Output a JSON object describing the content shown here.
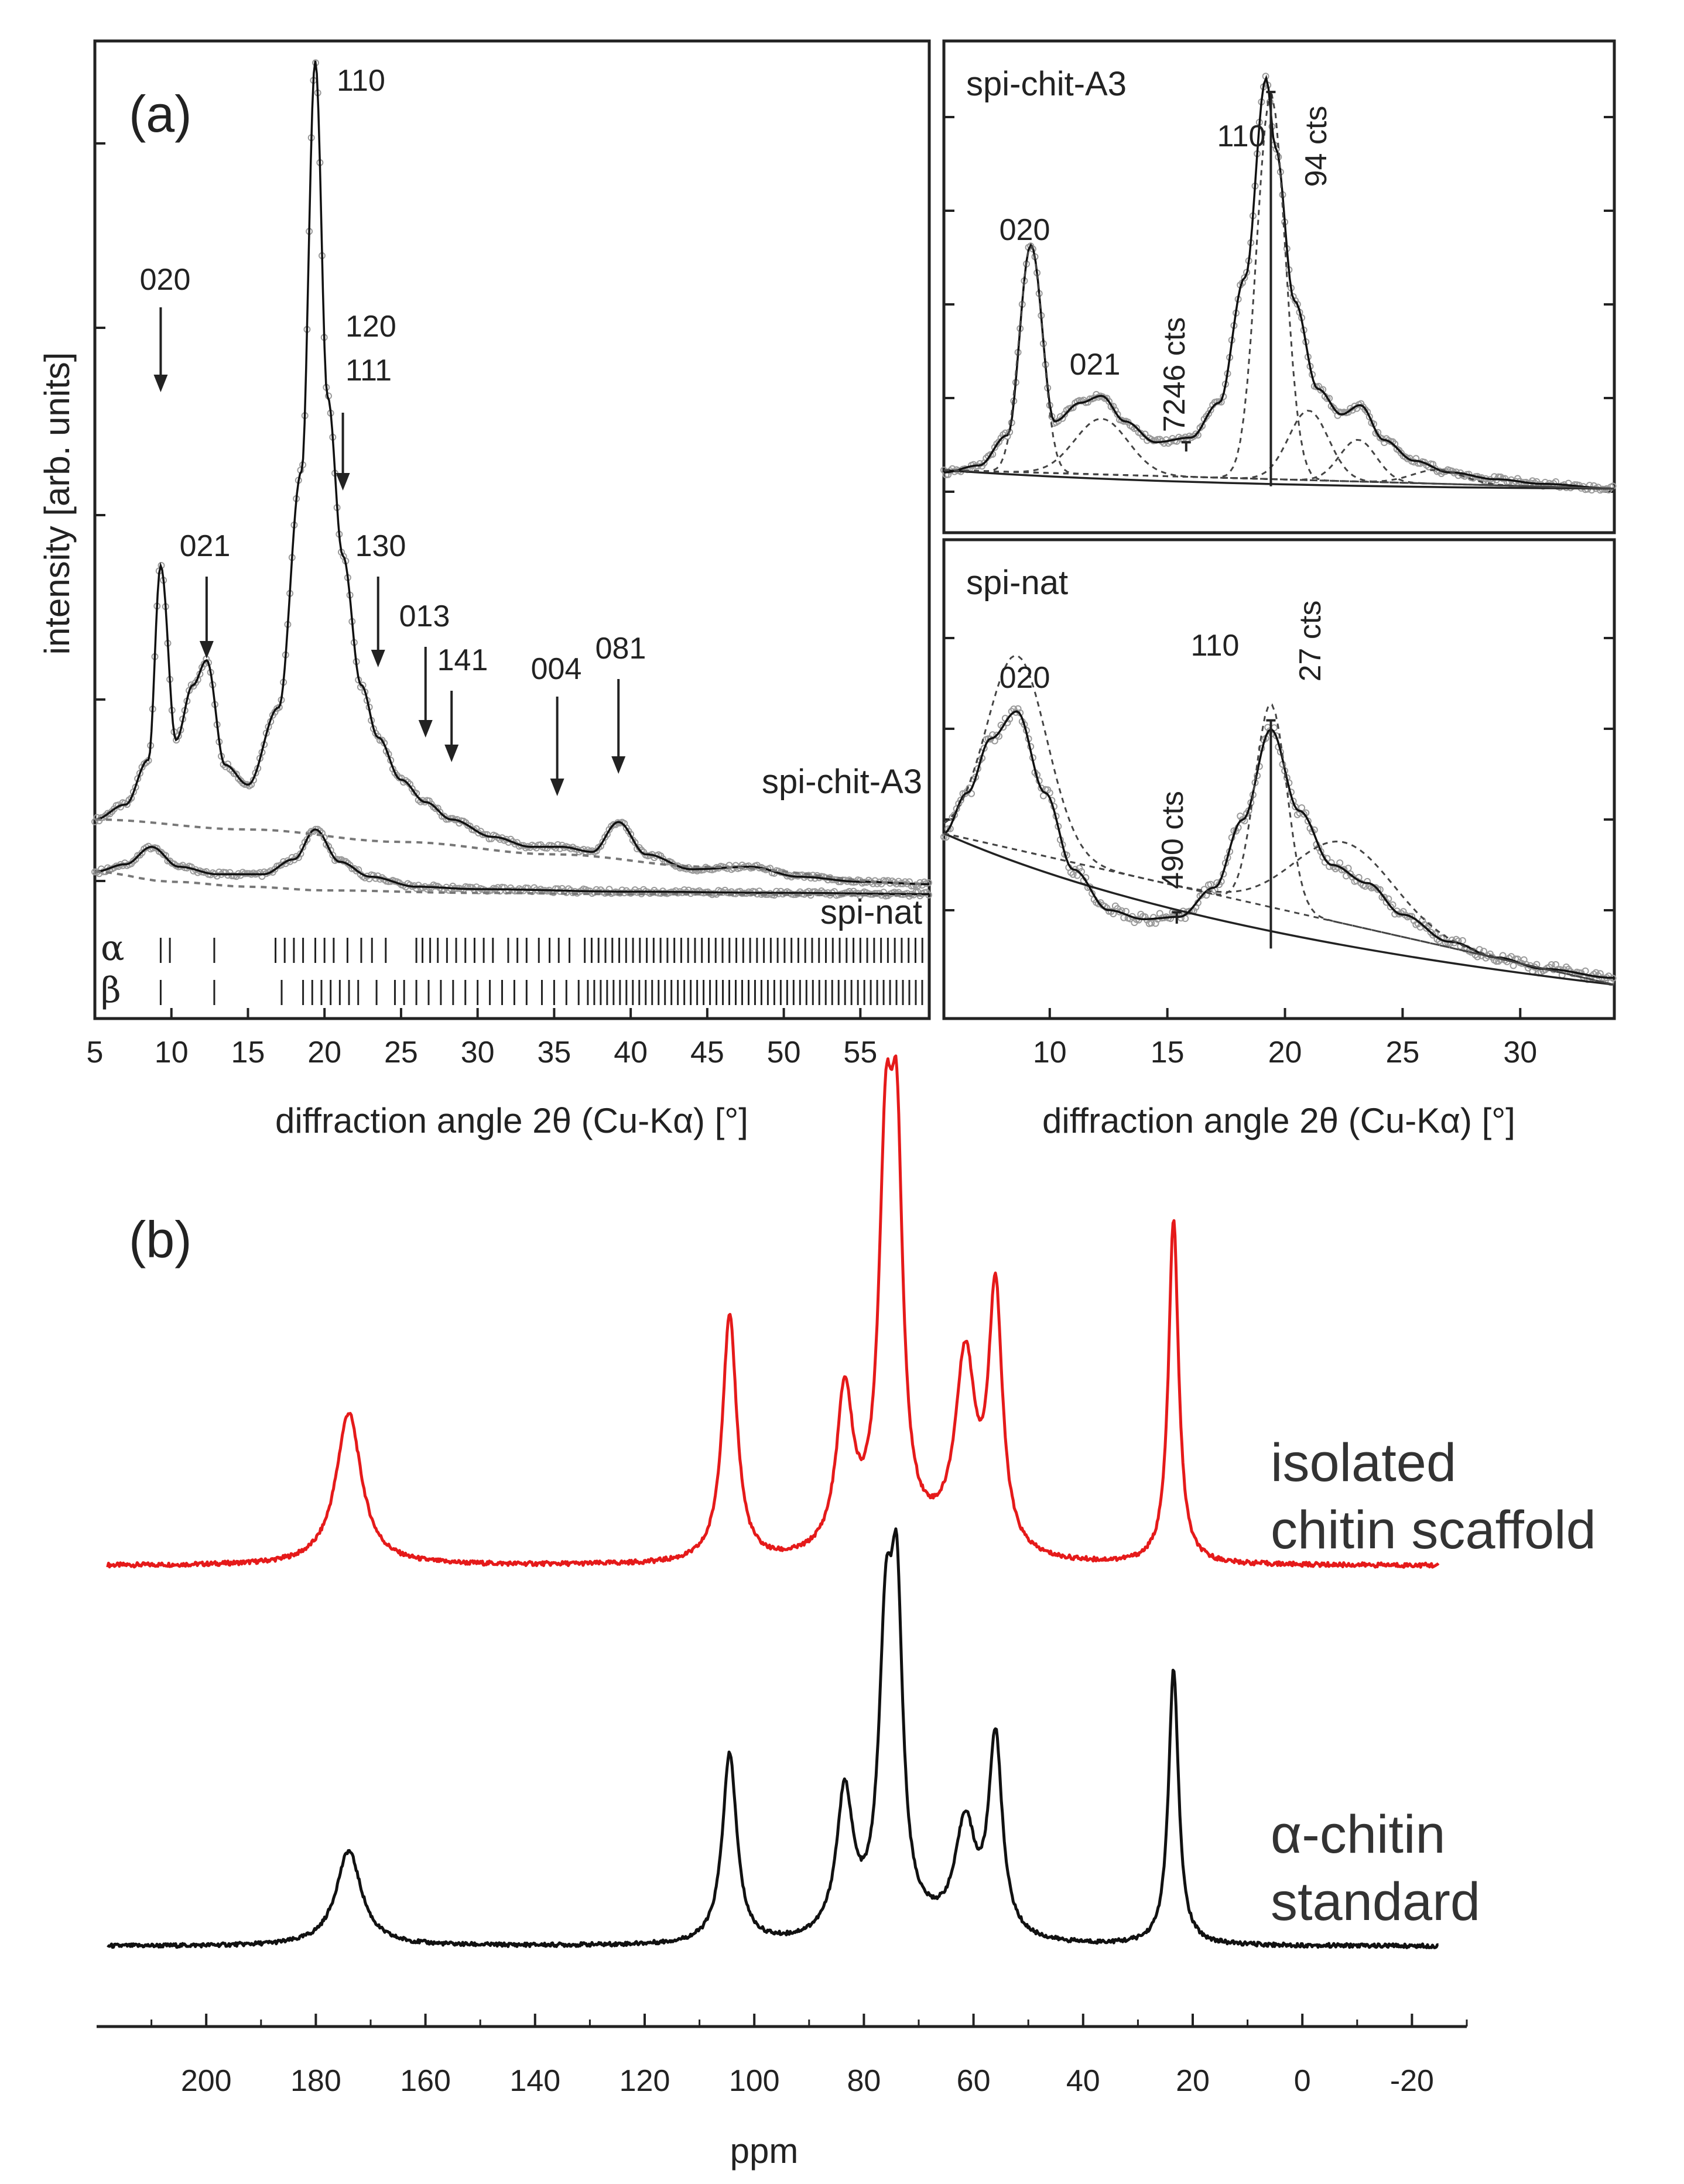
{
  "figure": {
    "panel_a_label": "(a)",
    "panel_b_label": "(b)"
  },
  "colors": {
    "ink": "#222222",
    "markers": "#9a9a9a",
    "red": "#e51a1a",
    "black": "#111111"
  },
  "chart_data": [
    {
      "id": "xrd-main",
      "type": "line",
      "title": "",
      "xlabel": "diffraction angle 2θ (Cu-Kα) [°]",
      "ylabel": "intensity [arb. units]",
      "xlim": [
        5,
        59.5
      ],
      "xticks": [
        5,
        10,
        15,
        20,
        25,
        30,
        35,
        40,
        45,
        50,
        55
      ],
      "series": [
        {
          "name": "spi-chit-A3",
          "x": [
            5,
            7,
            8.5,
            9.3,
            10.3,
            11.4,
            12.3,
            13.5,
            15,
            17,
            18.5,
            19.4,
            20.2,
            21.2,
            22.4,
            23.5,
            25,
            26.6,
            28.3,
            31,
            33.5,
            35.5,
            37.5,
            39.2,
            41,
            44,
            47.8,
            51,
            55,
            59.5
          ],
          "y": [
            8.0,
            8.6,
            10.4,
            18.2,
            11.2,
            13.4,
            14.4,
            10.2,
            9.4,
            12.5,
            22.0,
            38.5,
            25.0,
            18.6,
            13.4,
            11.3,
            9.6,
            8.7,
            8.0,
            7.3,
            6.9,
            6.9,
            6.7,
            7.9,
            6.6,
            6.0,
            6.1,
            5.7,
            5.5,
            5.4
          ]
        },
        {
          "name": "spi-nat",
          "x": [
            5,
            7,
            8.7,
            10.5,
            13,
            16,
            18,
            19.4,
            21,
            23,
            26,
            30,
            40,
            50,
            59.5
          ],
          "y": [
            5.9,
            6.2,
            6.9,
            6.1,
            5.8,
            5.8,
            6.4,
            7.6,
            6.3,
            5.7,
            5.3,
            5.2,
            5.1,
            5.05,
            5.0
          ]
        },
        {
          "name": "background spi-chit-A3",
          "x": [
            5,
            15,
            25,
            35,
            45,
            59.5
          ],
          "y": [
            8.0,
            7.6,
            7.1,
            6.6,
            6.1,
            5.4
          ]
        },
        {
          "name": "background spi-nat",
          "x": [
            5,
            10,
            15,
            20,
            30,
            40,
            59.5
          ],
          "y": [
            5.9,
            5.5,
            5.3,
            5.15,
            5.05,
            5.0,
            4.95
          ]
        }
      ],
      "sample_labels": [
        "spi-chit-A3",
        "spi-nat"
      ],
      "peak_labels": [
        {
          "text": "020",
          "x": 9.3
        },
        {
          "text": "021",
          "x": 12.3
        },
        {
          "text": "110",
          "x": 19.4
        },
        {
          "text": "120",
          "x": 21.2
        },
        {
          "text": "111",
          "x": 21.2
        },
        {
          "text": "130",
          "x": 23.5
        },
        {
          "text": "013",
          "x": 26.6
        },
        {
          "text": "141",
          "x": 28.3
        },
        {
          "text": "004",
          "x": 35.2
        },
        {
          "text": "081",
          "x": 39.2
        }
      ],
      "reference_labels": {
        "alpha": "α",
        "beta": "β"
      },
      "alpha_ticks": [
        9.3,
        9.9,
        12.8,
        16.8,
        17.4,
        18.0,
        18.6,
        19.4,
        20.0,
        20.6,
        21.5,
        22.4,
        23.1,
        24.0,
        26.0,
        26.4,
        26.9,
        27.4,
        28.0,
        28.6,
        29.2,
        29.8,
        30.4,
        31.0,
        32.0,
        32.6,
        33.2,
        34.0,
        34.7,
        35.3,
        36.0
      ],
      "beta_ticks": [
        9.3,
        12.8,
        17.2,
        18.6,
        19.2,
        19.8,
        20.4,
        21.0,
        21.6,
        22.2,
        23.4,
        24.6,
        25.2,
        26.0,
        26.8,
        27.6,
        28.4,
        29.2,
        30.0,
        30.8,
        31.6,
        32.4,
        33.2,
        34.2,
        35.0,
        35.8,
        36.6
      ]
    },
    {
      "id": "xrd-fit-chit",
      "type": "line",
      "title": "spi-chit-A3",
      "xlim": [
        5.5,
        34
      ],
      "ylim": [
        0,
        10
      ],
      "x": [
        5.5,
        7,
        8.2,
        9.2,
        10.2,
        11.3,
        12.2,
        13.2,
        14.5,
        16,
        17.2,
        18.3,
        19.2,
        19.6,
        20.4,
        21.4,
        22.4,
        23.2,
        24.2,
        25.5,
        27,
        29,
        31,
        34
      ],
      "y": [
        1.3,
        1.45,
        2.1,
        6.2,
        2.4,
        2.8,
        2.95,
        2.4,
        1.95,
        2.05,
        2.8,
        5.5,
        9.8,
        8.3,
        5.0,
        3.1,
        2.55,
        2.75,
        2.0,
        1.55,
        1.3,
        1.15,
        1.05,
        0.95
      ],
      "labels": [
        "020",
        "021",
        "110"
      ],
      "annotations": [
        "7246 cts",
        "94 cts"
      ]
    },
    {
      "id": "xrd-fit-nat",
      "type": "line",
      "title": "spi-nat",
      "xlim": [
        5.5,
        34
      ],
      "xticks": [
        10,
        15,
        20,
        25,
        30
      ],
      "xlabel": "diffraction angle 2θ (Cu-Kα) [°]",
      "ylim": [
        0,
        10
      ],
      "x": [
        5.5,
        6.5,
        7.5,
        8.6,
        9.8,
        11,
        12.5,
        14,
        15.5,
        17,
        18.2,
        19.4,
        20.6,
        22,
        23.5,
        25,
        27,
        29,
        31,
        34
      ],
      "y": [
        4.1,
        5.0,
        6.2,
        6.8,
        5.0,
        3.3,
        2.4,
        2.2,
        2.25,
        2.9,
        4.4,
        6.4,
        4.6,
        3.4,
        3.0,
        2.3,
        1.7,
        1.35,
        1.1,
        0.9
      ],
      "labels": [
        "020",
        "110"
      ],
      "annotations": [
        "490 cts",
        "27 cts"
      ]
    },
    {
      "id": "nmr",
      "type": "line",
      "xlabel": "ppm",
      "xlim": [
        220,
        -30
      ],
      "xticks": [
        200,
        180,
        160,
        140,
        120,
        100,
        80,
        60,
        40,
        20,
        0,
        -20
      ],
      "peaks_ppm": [
        174,
        104.5,
        83.5,
        76,
        74,
        61.5,
        56,
        23.5
      ],
      "series": [
        {
          "name": "isolated chitin scaffold",
          "peak_heights": [
            0.42,
            0.68,
            0.43,
            1.0,
            0.93,
            0.52,
            0.71,
            0.95
          ]
        },
        {
          "name": "α-chitin standard",
          "peak_heights": [
            0.29,
            0.58,
            0.43,
            0.83,
            0.88,
            0.33,
            0.6,
            0.84
          ]
        }
      ],
      "labels": [
        [
          "isolated",
          "chitin scaffold"
        ],
        [
          "α-chitin",
          "standard"
        ]
      ]
    }
  ]
}
